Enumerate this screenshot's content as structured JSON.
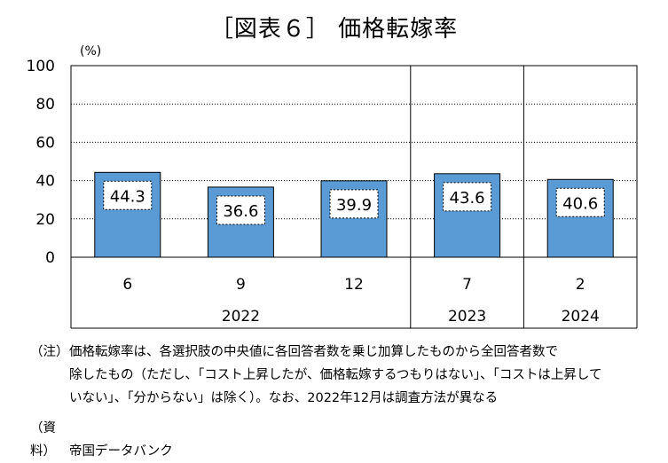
{
  "title": "［図表６］ 価格転嫁率",
  "chart_data": {
    "type": "bar",
    "title": "［図表６］ 価格転嫁率",
    "ylabel": "(%)",
    "ylim": [
      0,
      100
    ],
    "yticks": [
      0,
      20,
      40,
      60,
      80,
      100
    ],
    "grid": true,
    "categories": [
      "6",
      "9",
      "12",
      "7",
      "2"
    ],
    "groups": [
      {
        "label": "2022",
        "categories": [
          "6",
          "9",
          "12"
        ]
      },
      {
        "label": "2023",
        "categories": [
          "7"
        ]
      },
      {
        "label": "2024",
        "categories": [
          "2"
        ]
      }
    ],
    "values": [
      44.3,
      36.6,
      39.9,
      43.6,
      40.6
    ],
    "data_labels": [
      "44.3",
      "36.6",
      "39.9",
      "43.6",
      "40.6"
    ],
    "bar_color": "#5b9bd5"
  },
  "notes": {
    "note_label": "（注）",
    "note_line1": "価格転嫁率は、各選択肢の中央値に各回答者数を乗じ加算したものから全回答者数で",
    "note_line2": "除したもの（ただし、「コスト上昇したが、価格転嫁するつもりはない」、「コストは上昇して",
    "note_line3": "いない」、「分からない」は除く）。なお、2022年12月は調査方法が異なる",
    "source_label": "（資料）",
    "source_text": "帝国データバンク"
  }
}
